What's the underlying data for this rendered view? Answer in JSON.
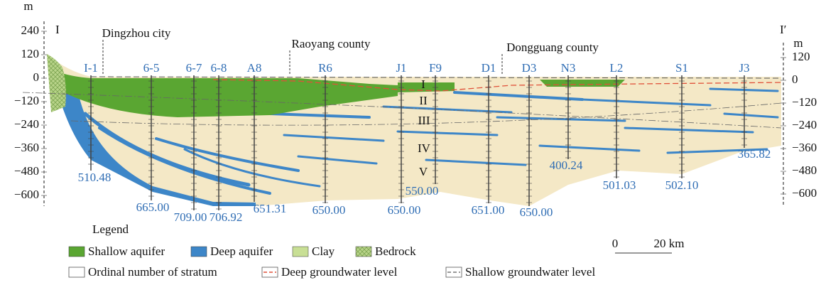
{
  "axis_left": {
    "unit": "m",
    "ticks": [
      240,
      120,
      0,
      {
        "value": -120,
        "label": "−120"
      },
      {
        "value": -240,
        "label": "−240"
      },
      {
        "value": -360,
        "label": "−360"
      },
      {
        "value": -480,
        "label": "−480"
      },
      {
        "value": -600,
        "label": "−600"
      }
    ]
  },
  "axis_right": {
    "unit": "m",
    "ticks": [
      120,
      0,
      {
        "value": -120,
        "label": "−120"
      },
      {
        "value": -240,
        "label": "−240"
      },
      {
        "value": -360,
        "label": "−360"
      },
      {
        "value": -480,
        "label": "−480"
      },
      {
        "value": -600,
        "label": "−600"
      }
    ]
  },
  "section": {
    "start": "I",
    "end": "I′"
  },
  "places": [
    "Dingzhou city",
    "Raoyang county",
    "Dongguang county"
  ],
  "wells": [
    {
      "name": "I-1",
      "depth": "510.48"
    },
    {
      "name": "6-5",
      "depth": "665.00"
    },
    {
      "name": "6-7",
      "depth": "709.00"
    },
    {
      "name": "6-8",
      "depth": "706.92"
    },
    {
      "name": "A8",
      "depth": "651.31"
    },
    {
      "name": "R6",
      "depth": "650.00"
    },
    {
      "name": "J1",
      "depth": "650.00"
    },
    {
      "name": "F9",
      "depth": "550.00"
    },
    {
      "name": "D1",
      "depth": "651.00"
    },
    {
      "name": "D3",
      "depth": "650.00"
    },
    {
      "name": "N3",
      "depth": "400.24"
    },
    {
      "name": "L2",
      "depth": "501.03"
    },
    {
      "name": "S1",
      "depth": "502.10"
    },
    {
      "name": "J3",
      "depth": "365.82"
    }
  ],
  "strata": [
    "I",
    "II",
    "III",
    "IV",
    "V"
  ],
  "legend": {
    "title": "Legend",
    "items": [
      "Shallow aquifer",
      "Deep aquifer",
      "Clay",
      "Bedrock",
      "Ordinal number of stratum",
      "Deep groundwater level",
      "Shallow groundwater level"
    ]
  },
  "scale": {
    "start": 0,
    "end": "20 km"
  }
}
